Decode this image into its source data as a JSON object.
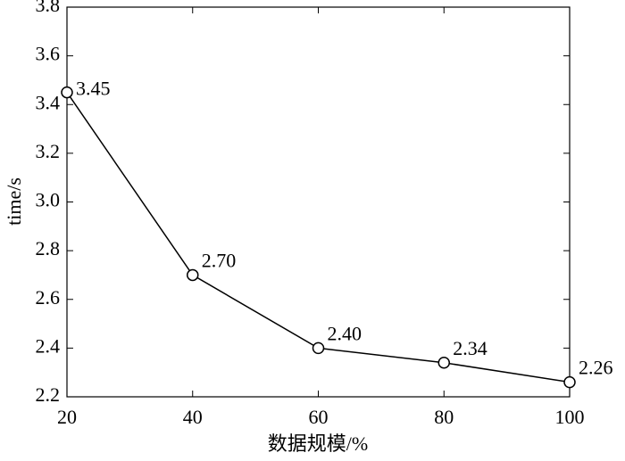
{
  "chart_data": {
    "type": "line",
    "x_label": "数据规模/%",
    "y_label": "time/s",
    "x": [
      20,
      40,
      60,
      80,
      100
    ],
    "series": [
      {
        "values": [
          3.45,
          2.7,
          2.4,
          2.34,
          2.26
        ],
        "value_labels": [
          "3.45",
          "2.70",
          "2.40",
          "2.34",
          "2.26"
        ],
        "color": "#000000"
      }
    ],
    "xlim": [
      20,
      100
    ],
    "xticks": [
      20,
      40,
      60,
      80,
      100
    ],
    "ylim": [
      2.2,
      3.8
    ],
    "yticks": [
      2.2,
      2.4,
      2.6,
      2.8,
      {
        "value": 3,
        "label": "3.0"
      },
      3.2,
      3.4,
      3.6,
      3.8
    ],
    "grid": false
  }
}
